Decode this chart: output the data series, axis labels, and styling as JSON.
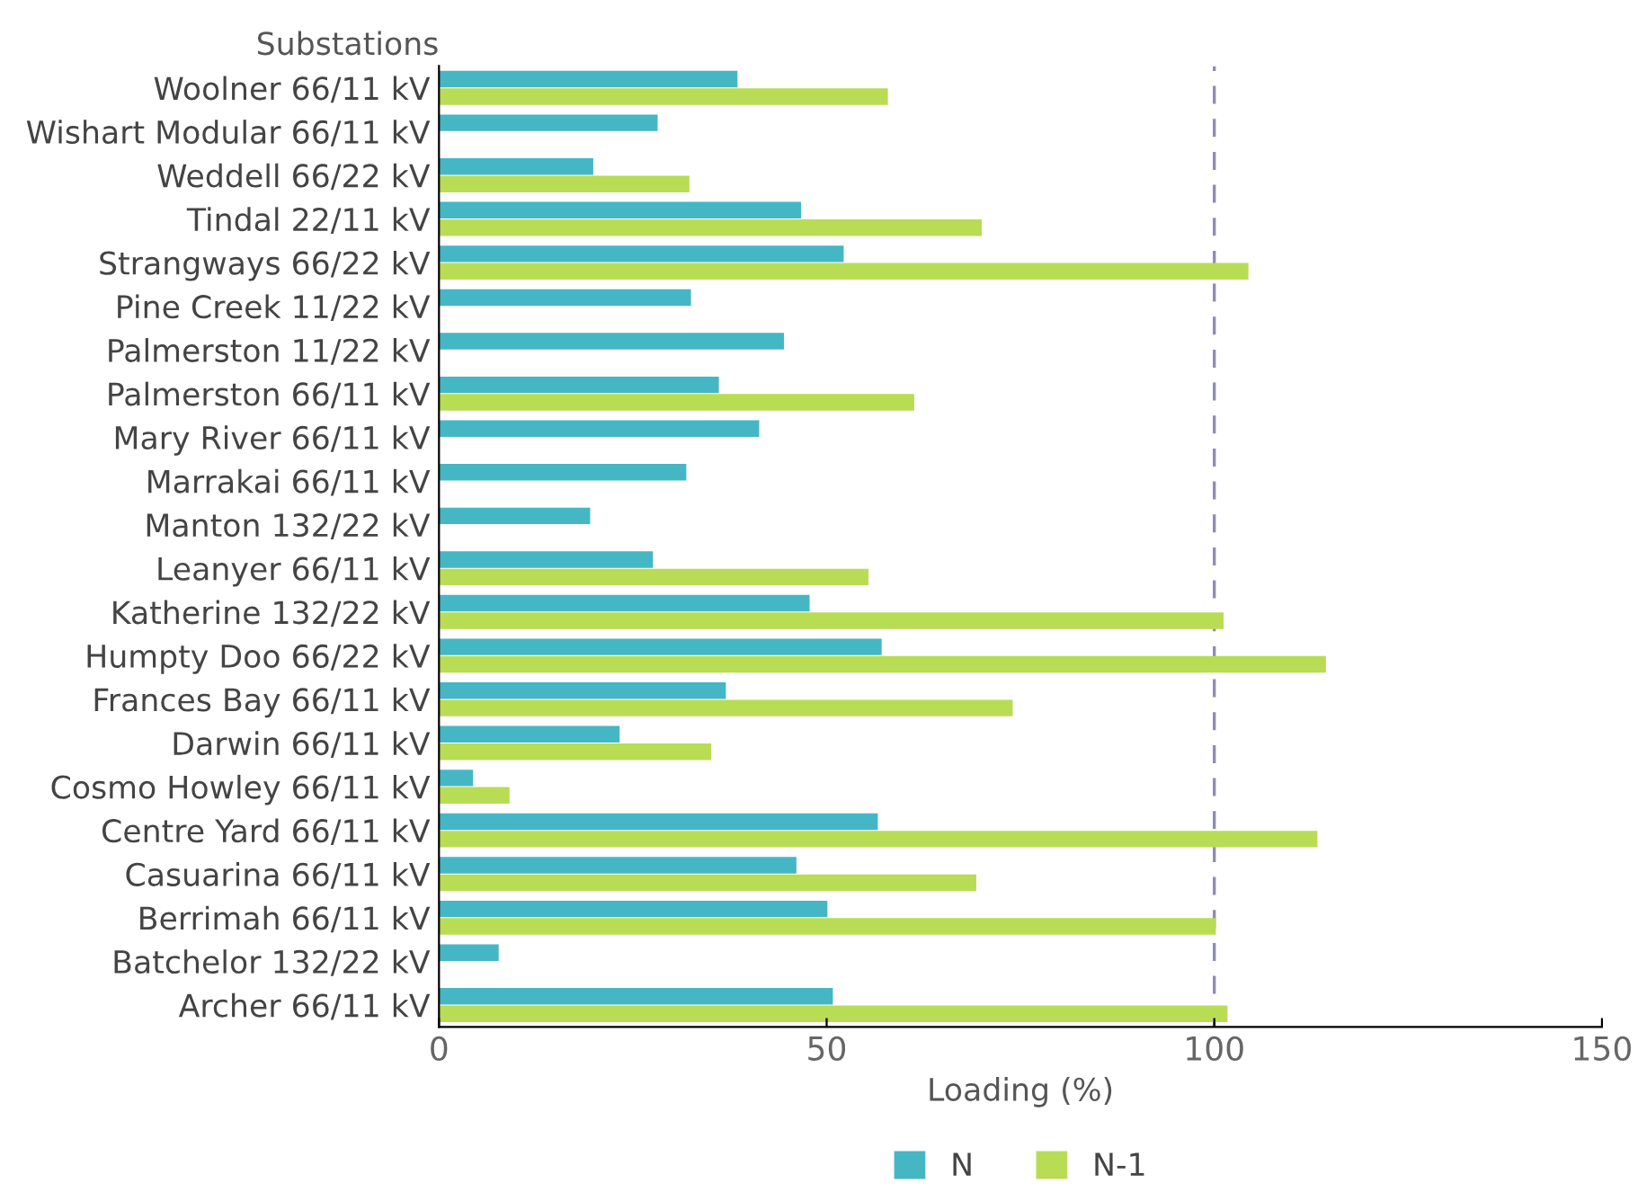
{
  "chart_data": {
    "type": "bar",
    "orientation": "horizontal",
    "xlabel": "Loading (%)",
    "ylabel": "Substations",
    "categories": [
      "Woolner 66/11 kV",
      "Wishart Modular 66/11 kV",
      "Weddell 66/22 kV",
      "Tindal 22/11 kV",
      "Strangways 66/22 kV",
      "Pine Creek 11/22 kV",
      "Palmerston 11/22 kV",
      "Palmerston 66/11 kV",
      "Mary River 66/11 kV",
      "Marrakai 66/11 kV",
      "Manton 132/22 kV",
      "Leanyer 66/11 kV",
      "Katherine 132/22 kV",
      "Humpty Doo 66/22 kV",
      "Frances Bay 66/11 kV",
      "Darwin 66/11 kV",
      "Cosmo Howley 66/11 kV",
      "Centre Yard 66/11 kV",
      "Casuarina 66/11 kV",
      "Berrimah 66/11 kV",
      "Batchelor 132/22 kV",
      "Archer 66/11 kV"
    ],
    "series": [
      {
        "name": "N",
        "color": "#45b7c4",
        "values": [
          38.5,
          28.2,
          19.9,
          46.7,
          52.2,
          32.5,
          44.5,
          36.1,
          41.3,
          31.9,
          19.5,
          27.6,
          47.8,
          57.1,
          37.0,
          23.3,
          4.4,
          56.6,
          46.1,
          50.1,
          7.7,
          50.8
        ]
      },
      {
        "name": "N-1",
        "color": "#b9dc55",
        "values": [
          57.9,
          null,
          32.3,
          70.0,
          104.4,
          null,
          null,
          61.3,
          null,
          null,
          null,
          55.4,
          101.2,
          114.4,
          74.0,
          35.1,
          9.1,
          113.3,
          69.3,
          100.2,
          null,
          101.7
        ]
      }
    ],
    "xlim": [
      0,
      150
    ],
    "xticks": [
      0,
      50,
      100,
      150
    ],
    "ref_lines": [
      {
        "axis": "x",
        "value": 100,
        "color": "#8e8cb0",
        "line_style": "dashed"
      }
    ],
    "grid": false,
    "legend": "bottom"
  }
}
